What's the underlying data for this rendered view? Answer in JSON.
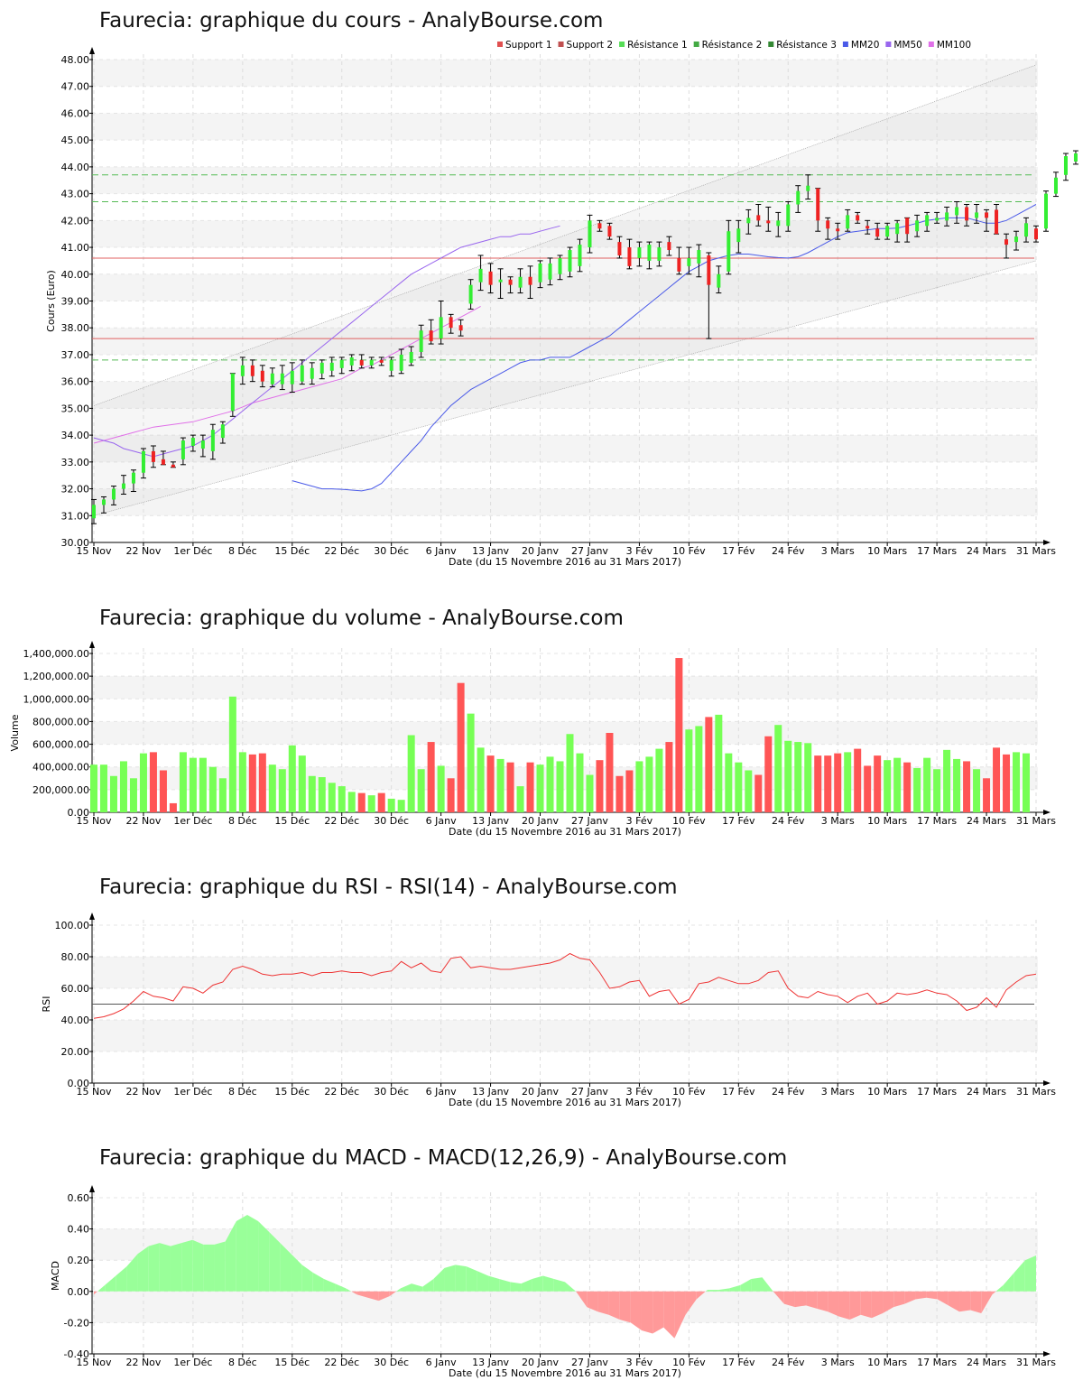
{
  "charts": [
    {
      "title": "Faurecia: graphique du cours - AnalyBourse.com"
    },
    {
      "title": "Faurecia: graphique du volume - AnalyBourse.com"
    },
    {
      "title": "Faurecia: graphique du RSI - RSI(14) - AnalyBourse.com"
    },
    {
      "title": "Faurecia: graphique du MACD - MACD(12,26,9) - AnalyBourse.com"
    }
  ],
  "xlabel": "Date (du 15 Novembre 2016 au 31 Mars 2017)",
  "x_ticks": [
    "15 Nov",
    "22 Nov",
    "1er Déc",
    "8 Déc",
    "15 Déc",
    "22 Déc",
    "30 Déc",
    "6 Janv",
    "13 Janv",
    "20 Janv",
    "27 Janv",
    "3 Fév",
    "10 Fév",
    "17 Fév",
    "24 Fév",
    "3 Mars",
    "10 Mars",
    "17 Mars",
    "24 Mars",
    "31 Mars"
  ],
  "x_tick_days": [
    0,
    5,
    10,
    15,
    20,
    25,
    30,
    35,
    40,
    45,
    50,
    55,
    60,
    65,
    70,
    75,
    80,
    85,
    90,
    95
  ],
  "colors": {
    "up": "#33ee33",
    "down": "#ee2222",
    "vol_up": "#77ff55",
    "vol_down": "#ff5555",
    "mm20": "#4a5ae8",
    "mm50": "#9966ee",
    "mm100": "#e070e8",
    "support": "#e06060",
    "resistance": "#55bb55",
    "rsi": "#ee3333",
    "macd_pos": "#99ff99",
    "macd_neg": "#ff9999"
  },
  "chart_data": [
    {
      "type": "candlestick",
      "ylabel": "Cours (Euro)",
      "ylim": [
        30,
        48
      ],
      "y_ticks": [
        "30.00",
        "31.00",
        "32.00",
        "33.00",
        "34.00",
        "35.00",
        "36.00",
        "37.00",
        "38.00",
        "39.00",
        "40.00",
        "41.00",
        "42.00",
        "43.00",
        "44.00",
        "45.00",
        "46.00",
        "47.00",
        "48.00"
      ],
      "legend": [
        {
          "name": "Support 1",
          "color": "#e05050"
        },
        {
          "name": "Support 2",
          "color": "#c05050"
        },
        {
          "name": "Résistance 1",
          "color": "#55dd55"
        },
        {
          "name": "Résistance 2",
          "color": "#44aa44"
        },
        {
          "name": "Résistance 3",
          "color": "#338833"
        },
        {
          "name": "MM20",
          "color": "#4a5ae8"
        },
        {
          "name": "MM50",
          "color": "#9966ee"
        },
        {
          "name": "MM100",
          "color": "#e070e8"
        }
      ],
      "support_levels": [
        40.6,
        37.6
      ],
      "resistance_levels": [
        36.8,
        42.7,
        43.7
      ],
      "ohlc": [
        [
          30.9,
          31.6,
          30.7,
          31.4
        ],
        [
          31.4,
          31.7,
          31.1,
          31.6
        ],
        [
          31.6,
          32.1,
          31.4,
          32.0
        ],
        [
          32.0,
          32.5,
          31.8,
          32.2
        ],
        [
          32.2,
          32.7,
          31.9,
          32.6
        ],
        [
          32.6,
          33.5,
          32.4,
          33.4
        ],
        [
          33.4,
          33.6,
          32.8,
          33.0
        ],
        [
          33.1,
          33.4,
          32.9,
          32.9
        ],
        [
          32.9,
          33.0,
          32.8,
          32.8
        ],
        [
          33.1,
          33.9,
          32.9,
          33.8
        ],
        [
          33.6,
          34.0,
          33.4,
          33.9
        ],
        [
          33.5,
          34.0,
          33.2,
          33.8
        ],
        [
          33.4,
          34.4,
          33.1,
          34.2
        ],
        [
          33.9,
          34.5,
          33.7,
          34.4
        ],
        [
          34.9,
          36.3,
          34.7,
          36.3
        ],
        [
          36.2,
          36.9,
          35.9,
          36.6
        ],
        [
          36.6,
          36.8,
          36.0,
          36.2
        ],
        [
          36.4,
          36.6,
          35.8,
          36.0
        ],
        [
          35.9,
          36.5,
          35.8,
          36.3
        ],
        [
          35.9,
          36.6,
          35.7,
          36.3
        ],
        [
          35.9,
          36.7,
          35.6,
          36.4
        ],
        [
          36.0,
          36.8,
          35.9,
          36.6
        ],
        [
          36.1,
          36.7,
          35.9,
          36.5
        ],
        [
          36.3,
          36.8,
          36.1,
          36.7
        ],
        [
          36.4,
          36.9,
          36.2,
          36.7
        ],
        [
          36.5,
          36.9,
          36.3,
          36.8
        ],
        [
          36.6,
          37.0,
          36.4,
          36.9
        ],
        [
          36.8,
          37.0,
          36.5,
          36.6
        ],
        [
          36.6,
          36.9,
          36.5,
          36.8
        ],
        [
          36.8,
          36.9,
          36.6,
          36.7
        ],
        [
          36.4,
          36.9,
          36.2,
          36.8
        ],
        [
          36.4,
          37.2,
          36.3,
          37.0
        ],
        [
          36.7,
          37.3,
          36.6,
          37.1
        ],
        [
          37.1,
          38.1,
          36.9,
          37.9
        ],
        [
          37.9,
          38.3,
          37.4,
          37.5
        ],
        [
          37.6,
          39.0,
          37.4,
          38.4
        ],
        [
          38.4,
          38.5,
          37.8,
          38.0
        ],
        [
          38.1,
          38.3,
          37.7,
          37.9
        ],
        [
          38.9,
          39.8,
          38.7,
          39.6
        ],
        [
          39.7,
          40.7,
          39.4,
          40.2
        ],
        [
          40.1,
          40.4,
          39.3,
          39.6
        ],
        [
          39.7,
          40.2,
          39.1,
          39.8
        ],
        [
          39.8,
          39.9,
          39.3,
          39.6
        ],
        [
          39.5,
          40.2,
          39.3,
          39.9
        ],
        [
          39.9,
          40.3,
          39.1,
          39.6
        ],
        [
          39.7,
          40.5,
          39.5,
          40.4
        ],
        [
          39.8,
          40.6,
          39.6,
          40.4
        ],
        [
          40.0,
          40.7,
          39.8,
          40.6
        ],
        [
          40.1,
          41.0,
          39.9,
          40.9
        ],
        [
          40.3,
          41.3,
          40.1,
          41.1
        ],
        [
          41.0,
          42.2,
          40.8,
          42.0
        ],
        [
          41.9,
          42.0,
          41.6,
          41.7
        ],
        [
          41.8,
          41.9,
          41.3,
          41.4
        ],
        [
          41.2,
          41.4,
          40.6,
          40.7
        ],
        [
          41.0,
          41.3,
          40.2,
          40.3
        ],
        [
          40.6,
          41.2,
          40.3,
          41.0
        ],
        [
          40.5,
          41.2,
          40.2,
          41.1
        ],
        [
          40.5,
          41.2,
          40.3,
          41.0
        ],
        [
          41.2,
          41.4,
          40.7,
          40.9
        ],
        [
          40.6,
          41.0,
          40.0,
          40.1
        ],
        [
          40.3,
          41.0,
          40.0,
          40.6
        ],
        [
          40.4,
          41.1,
          39.9,
          40.9
        ],
        [
          40.7,
          40.8,
          37.6,
          39.6
        ],
        [
          39.5,
          40.3,
          39.3,
          40.0
        ],
        [
          40.1,
          42.0,
          40.0,
          41.6
        ],
        [
          41.2,
          42.0,
          40.8,
          41.7
        ],
        [
          41.9,
          42.4,
          41.5,
          42.1
        ],
        [
          42.2,
          42.6,
          41.8,
          42.0
        ],
        [
          42.0,
          42.5,
          41.6,
          41.9
        ],
        [
          41.8,
          42.3,
          41.4,
          42.0
        ],
        [
          41.8,
          42.7,
          41.6,
          42.6
        ],
        [
          42.6,
          43.3,
          42.3,
          43.1
        ],
        [
          43.1,
          43.7,
          42.8,
          43.3
        ],
        [
          43.2,
          43.2,
          41.6,
          42.0
        ],
        [
          42.0,
          42.1,
          41.3,
          41.7
        ],
        [
          41.7,
          41.9,
          41.3,
          41.6
        ],
        [
          41.7,
          42.4,
          41.6,
          42.2
        ],
        [
          42.2,
          42.3,
          41.9,
          42.0
        ],
        [
          41.8,
          42.0,
          41.5,
          41.7
        ],
        [
          41.7,
          41.9,
          41.3,
          41.4
        ],
        [
          41.4,
          41.9,
          41.3,
          41.8
        ],
        [
          41.5,
          42.0,
          41.2,
          41.9
        ],
        [
          42.1,
          42.1,
          41.2,
          41.5
        ],
        [
          41.6,
          42.2,
          41.4,
          42.0
        ],
        [
          41.8,
          42.3,
          41.6,
          42.2
        ],
        [
          42.0,
          42.3,
          41.9,
          42.1
        ],
        [
          42.0,
          42.5,
          41.8,
          42.3
        ],
        [
          42.2,
          42.7,
          41.9,
          42.5
        ],
        [
          42.5,
          42.6,
          41.8,
          42.0
        ],
        [
          42.1,
          42.6,
          41.9,
          42.3
        ],
        [
          42.3,
          42.4,
          41.6,
          42.1
        ],
        [
          42.4,
          42.6,
          41.5,
          41.5
        ],
        [
          41.3,
          41.5,
          40.6,
          41.1
        ],
        [
          41.2,
          41.6,
          40.9,
          41.4
        ],
        [
          41.4,
          42.1,
          41.2,
          41.9
        ],
        [
          41.7,
          41.8,
          41.2,
          41.3
        ],
        [
          41.7,
          43.1,
          41.6,
          43.0
        ],
        [
          43.0,
          43.8,
          42.9,
          43.6
        ],
        [
          43.7,
          44.5,
          43.5,
          44.4
        ],
        [
          44.2,
          44.6,
          44.1,
          44.5
        ]
      ],
      "mm20": [
        32.3,
        32.2,
        32.1,
        32.0,
        32.0,
        31.98,
        31.95,
        31.92,
        32.0,
        32.2,
        32.6,
        33.0,
        33.4,
        33.8,
        34.3,
        34.7,
        35.1,
        35.4,
        35.7,
        35.9,
        36.1,
        36.3,
        36.5,
        36.7,
        36.8,
        36.8,
        36.9,
        36.9,
        36.9,
        37.1,
        37.3,
        37.5,
        37.7,
        38.0,
        38.3,
        38.6,
        38.9,
        39.2,
        39.5,
        39.8,
        40.1,
        40.3,
        40.5,
        40.6,
        40.7,
        40.75,
        40.75,
        40.7,
        40.65,
        40.62,
        40.6,
        40.65,
        40.8,
        41.0,
        41.2,
        41.4,
        41.55,
        41.6,
        41.65,
        41.7,
        41.7,
        41.72,
        41.8,
        41.9,
        42.0,
        42.05,
        42.1,
        42.1,
        42.1,
        42.0,
        41.9,
        41.9,
        42.0,
        42.2,
        42.4,
        42.6
      ],
      "mm50": [
        33.9,
        33.8,
        33.7,
        33.5,
        33.4,
        33.3,
        33.2,
        33.3,
        33.4,
        33.5,
        33.6,
        33.8,
        34.0,
        34.3,
        34.6,
        34.9,
        35.2,
        35.5,
        35.8,
        36.1,
        36.4,
        36.7,
        37.0,
        37.3,
        37.6,
        37.9,
        38.2,
        38.5,
        38.8,
        39.1,
        39.4,
        39.7,
        40.0,
        40.2,
        40.4,
        40.6,
        40.8,
        41.0,
        41.1,
        41.2,
        41.3,
        41.4,
        41.4,
        41.5,
        41.5,
        41.6,
        41.7,
        41.8
      ],
      "mm100": [
        33.7,
        33.8,
        33.9,
        34.0,
        34.1,
        34.2,
        34.3,
        34.35,
        34.4,
        34.45,
        34.5,
        34.6,
        34.7,
        34.8,
        34.9,
        35.05,
        35.2,
        35.3,
        35.4,
        35.5,
        35.6,
        35.7,
        35.8,
        35.9,
        36.0,
        36.1,
        36.3,
        36.5,
        36.6,
        36.8,
        37.0,
        37.2,
        37.4,
        37.6,
        37.8,
        38.0,
        38.2,
        38.4,
        38.6,
        38.8
      ]
    },
    {
      "type": "bar",
      "ylabel": "Volume",
      "ylim": [
        0,
        1400000
      ],
      "y_ticks": [
        "0.00",
        "200,000.00",
        "400,000.00",
        "600,000.00",
        "800,000.00",
        "1,000,000.00",
        "1,200,000.00",
        "1,400,000.00"
      ],
      "values": [
        420000,
        420000,
        320000,
        450000,
        300000,
        520000,
        530000,
        370000,
        80000,
        530000,
        480000,
        480000,
        400000,
        300000,
        1020000,
        530000,
        510000,
        520000,
        420000,
        380000,
        590000,
        500000,
        320000,
        310000,
        260000,
        230000,
        180000,
        170000,
        150000,
        170000,
        120000,
        110000,
        680000,
        380000,
        620000,
        410000,
        300000,
        1140000,
        870000,
        570000,
        500000,
        470000,
        440000,
        230000,
        440000,
        420000,
        490000,
        450000,
        690000,
        520000,
        330000,
        460000,
        700000,
        320000,
        370000,
        450000,
        490000,
        560000,
        620000,
        1360000,
        730000,
        760000,
        840000,
        860000,
        520000,
        440000,
        370000,
        330000,
        670000,
        770000,
        630000,
        620000,
        610000,
        500000,
        500000,
        520000,
        530000,
        560000,
        410000,
        500000,
        460000,
        480000,
        440000,
        390000,
        480000,
        380000,
        550000,
        470000,
        450000,
        380000,
        300000,
        570000,
        510000,
        530000,
        520000
      ]
    },
    {
      "type": "line",
      "ylabel": "RSI",
      "ylim": [
        0,
        100
      ],
      "y_ticks": [
        "0.00",
        "20.00",
        "40.00",
        "60.00",
        "80.00",
        "100.00"
      ],
      "reference_line": 50,
      "values": [
        41,
        42,
        44,
        47,
        52,
        58,
        55,
        54,
        52,
        61,
        60,
        57,
        62,
        64,
        72,
        74,
        72,
        69,
        68,
        69,
        69,
        70,
        68,
        70,
        70,
        71,
        70,
        70,
        68,
        70,
        71,
        77,
        73,
        76,
        71,
        70,
        79,
        80,
        73,
        74,
        73,
        72,
        72,
        73,
        74,
        75,
        76,
        78,
        82,
        79,
        78,
        70,
        60,
        61,
        64,
        65,
        55,
        58,
        59,
        50,
        53,
        63,
        64,
        67,
        65,
        63,
        63,
        65,
        70,
        71,
        60,
        55,
        54,
        58,
        56,
        55,
        51,
        55,
        57,
        50,
        52,
        57,
        56,
        57,
        59,
        57,
        56,
        52,
        46,
        48,
        54,
        48,
        59,
        64,
        68,
        69
      ]
    },
    {
      "type": "area",
      "ylabel": "MACD",
      "ylim": [
        -0.4,
        0.6
      ],
      "y_ticks": [
        "-0.40",
        "-0.20",
        "0.00",
        "0.20",
        "0.40",
        "0.60"
      ],
      "values": [
        -0.02,
        0.04,
        0.1,
        0.16,
        0.24,
        0.29,
        0.31,
        0.29,
        0.31,
        0.33,
        0.3,
        0.3,
        0.32,
        0.45,
        0.49,
        0.45,
        0.38,
        0.31,
        0.24,
        0.17,
        0.12,
        0.08,
        0.05,
        0.02,
        -0.02,
        -0.04,
        -0.06,
        -0.03,
        0.02,
        0.05,
        0.03,
        0.08,
        0.15,
        0.17,
        0.16,
        0.13,
        0.1,
        0.08,
        0.06,
        0.05,
        0.08,
        0.1,
        0.08,
        0.06,
        0.0,
        -0.1,
        -0.13,
        -0.15,
        -0.18,
        -0.2,
        -0.25,
        -0.27,
        -0.23,
        -0.3,
        -0.15,
        -0.05,
        0.01,
        0.01,
        0.02,
        0.04,
        0.08,
        0.09,
        0.0,
        -0.08,
        -0.1,
        -0.09,
        -0.11,
        -0.13,
        -0.16,
        -0.18,
        -0.15,
        -0.17,
        -0.14,
        -0.1,
        -0.08,
        -0.05,
        -0.04,
        -0.05,
        -0.09,
        -0.13,
        -0.12,
        -0.14,
        -0.02,
        0.04,
        0.12,
        0.2,
        0.23
      ]
    }
  ]
}
